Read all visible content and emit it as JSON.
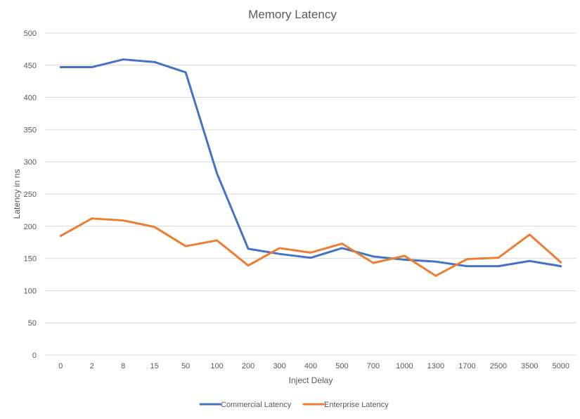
{
  "chart_data": {
    "type": "line",
    "title": "Memory Latency",
    "xlabel": "Inject Delay",
    "ylabel": "Latency in ns",
    "categories": [
      "0",
      "2",
      "8",
      "15",
      "50",
      "100",
      "200",
      "300",
      "400",
      "500",
      "700",
      "1000",
      "1300",
      "1700",
      "2500",
      "3500",
      "5000"
    ],
    "ylim": [
      0,
      500
    ],
    "yticks": [
      "0",
      "50",
      "100",
      "150",
      "200",
      "250",
      "300",
      "350",
      "400",
      "450",
      "500"
    ],
    "grid": true,
    "legend_position": "bottom",
    "series": [
      {
        "name": "Commercial Latency",
        "color": "#4472c4",
        "values": [
          447,
          447,
          459,
          455,
          439,
          282,
          165,
          157,
          151,
          166,
          153,
          148,
          145,
          138,
          138,
          146,
          138
        ]
      },
      {
        "name": "Enterprise Latency",
        "color": "#ed7d31",
        "values": [
          185,
          212,
          209,
          199,
          169,
          178,
          139,
          166,
          159,
          173,
          143,
          154,
          123,
          149,
          151,
          187,
          144
        ]
      }
    ]
  }
}
